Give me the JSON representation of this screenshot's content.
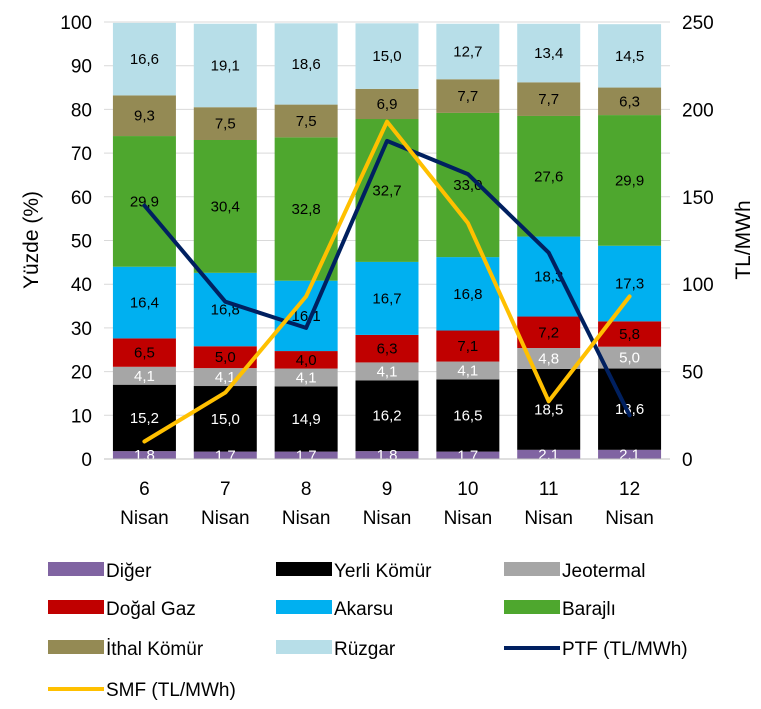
{
  "chart_data": {
    "type": "bar",
    "stacked": true,
    "percent_axis_label": "Yüzde (%)",
    "price_axis_label": "TL/MWh",
    "categories": [
      [
        "6",
        "Nisan"
      ],
      [
        "7",
        "Nisan"
      ],
      [
        "8",
        "Nisan"
      ],
      [
        "9",
        "Nisan"
      ],
      [
        "10",
        "Nisan"
      ],
      [
        "11",
        "Nisan"
      ],
      [
        "12",
        "Nisan"
      ]
    ],
    "ylim_left": [
      0,
      100
    ],
    "yticks_left": [
      0,
      10,
      20,
      30,
      40,
      50,
      60,
      70,
      80,
      90,
      100
    ],
    "ylim_right": [
      0,
      250
    ],
    "yticks_right": [
      0,
      50,
      100,
      150,
      200,
      250
    ],
    "series": [
      {
        "name": "Diğer",
        "color": "#8064a2",
        "label_color": "#ffffff",
        "values": [
          1.8,
          1.7,
          1.7,
          1.8,
          1.7,
          2.1,
          2.1
        ],
        "labels": [
          "1,8",
          "1,7",
          "1,7",
          "1,8",
          "1,7",
          "2,1",
          "2,1"
        ]
      },
      {
        "name": "Yerli Kömür",
        "color": "#000000",
        "label_color": "#ffffff",
        "values": [
          15.2,
          15.0,
          14.9,
          16.2,
          16.5,
          18.5,
          18.6
        ],
        "labels": [
          "15,2",
          "15,0",
          "14,9",
          "16,2",
          "16,5",
          "18,5",
          "18,6"
        ]
      },
      {
        "name": "Jeotermal",
        "color": "#a6a6a6",
        "label_color": "#ffffff",
        "values": [
          4.1,
          4.1,
          4.1,
          4.1,
          4.1,
          4.8,
          5.0
        ],
        "labels": [
          "4,1",
          "4,1",
          "4,1",
          "4,1",
          "4,1",
          "4,8",
          "5,0"
        ]
      },
      {
        "name": "Doğal Gaz",
        "color": "#c00000",
        "label_color": "#000000",
        "values": [
          6.5,
          5.0,
          4.0,
          6.3,
          7.1,
          7.2,
          5.8
        ],
        "labels": [
          "6,5",
          "5,0",
          "4,0",
          "6,3",
          "7,1",
          "7,2",
          "5,8"
        ]
      },
      {
        "name": "Akarsu",
        "color": "#00b0f0",
        "label_color": "#000000",
        "values": [
          16.4,
          16.8,
          16.1,
          16.7,
          16.8,
          18.3,
          17.3
        ],
        "labels": [
          "16,4",
          "16,8",
          "16,1",
          "16,7",
          "16,8",
          "18,3",
          "17,3"
        ]
      },
      {
        "name": "Barajlı",
        "color": "#4ea72e",
        "label_color": "#000000",
        "values": [
          29.9,
          30.4,
          32.8,
          32.7,
          33.0,
          27.6,
          29.9
        ],
        "labels": [
          "29,9",
          "30,4",
          "32,8",
          "32,7",
          "33,0",
          "27,6",
          "29,9"
        ]
      },
      {
        "name": "İthal Kömür",
        "color": "#948a54",
        "label_color": "#000000",
        "values": [
          9.3,
          7.5,
          7.5,
          6.9,
          7.7,
          7.7,
          6.3
        ],
        "labels": [
          "9,3",
          "7,5",
          "7,5",
          "6,9",
          "7,7",
          "7,7",
          "6,3"
        ]
      },
      {
        "name": "Rüzgar",
        "color": "#b7dee8",
        "label_color": "#000000",
        "values": [
          16.6,
          19.1,
          18.6,
          15.0,
          12.7,
          13.4,
          14.5
        ],
        "labels": [
          "16,6",
          "19,1",
          "18,6",
          "15,0",
          "12,7",
          "13,4",
          "14,5"
        ]
      }
    ],
    "lines": [
      {
        "name": "PTF (TL/MWh)",
        "color": "#002060",
        "axis": "right",
        "values": [
          145,
          90,
          75,
          182,
          163,
          118,
          25
        ]
      },
      {
        "name": "SMF (TL/MWh)",
        "color": "#ffc000",
        "axis": "right",
        "values": [
          10,
          38,
          93,
          193,
          135,
          33,
          93
        ]
      }
    ],
    "legend": {
      "position": "bottom",
      "items": [
        "Diğer",
        "Yerli Kömür",
        "Jeotermal",
        "Doğal Gaz",
        "Akarsu",
        "Barajlı",
        "İthal Kömür",
        "Rüzgar",
        "PTF (TL/MWh)",
        "SMF (TL/MWh)"
      ]
    }
  }
}
